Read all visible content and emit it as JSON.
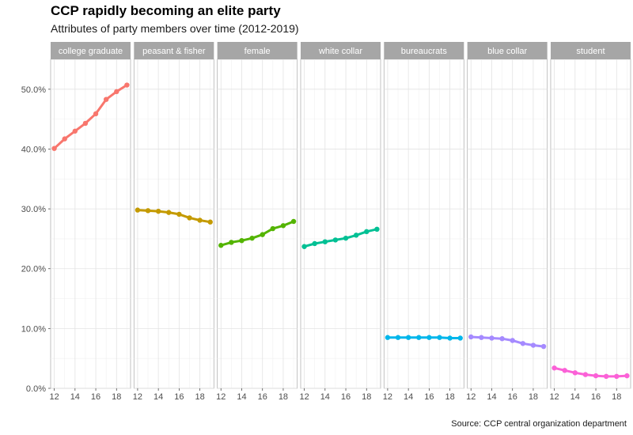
{
  "title": "CCP rapidly becoming an elite party",
  "subtitle": "Attributes of party members over time (2012-2019)",
  "caption": "Source: CCP central organization department",
  "chart_data": {
    "type": "line",
    "faceted": true,
    "x": [
      2012,
      2013,
      2014,
      2015,
      2016,
      2017,
      2018,
      2019
    ],
    "x_tick_values": [
      2012,
      2014,
      2016,
      2018
    ],
    "x_tick_labels": [
      "12",
      "14",
      "16",
      "18"
    ],
    "ylim": [
      0,
      0.55
    ],
    "y_ticks": [
      0,
      0.1,
      0.2,
      0.3,
      0.4,
      0.5
    ],
    "y_tick_labels": [
      "0.0%",
      "10.0%",
      "20.0%",
      "30.0%",
      "40.0%",
      "50.0%"
    ],
    "grid": true,
    "legend": "none",
    "series": [
      {
        "name": "college graduate",
        "color": "#F8766D",
        "values": [
          0.401,
          0.417,
          0.43,
          0.443,
          0.459,
          0.483,
          0.496,
          0.507
        ]
      },
      {
        "name": "peasant & fisher",
        "color": "#C49A00",
        "values": [
          0.298,
          0.297,
          0.296,
          0.294,
          0.291,
          0.285,
          0.281,
          0.278
        ]
      },
      {
        "name": "female",
        "color": "#53B400",
        "values": [
          0.239,
          0.244,
          0.247,
          0.251,
          0.257,
          0.267,
          0.272,
          0.279
        ]
      },
      {
        "name": "white collar",
        "color": "#00C094",
        "values": [
          0.237,
          0.242,
          0.245,
          0.248,
          0.251,
          0.256,
          0.262,
          0.266
        ]
      },
      {
        "name": "bureaucrats",
        "color": "#00B6EB",
        "values": [
          0.085,
          0.085,
          0.085,
          0.085,
          0.085,
          0.085,
          0.084,
          0.084
        ]
      },
      {
        "name": "blue collar",
        "color": "#A58AFF",
        "values": [
          0.086,
          0.085,
          0.084,
          0.083,
          0.08,
          0.075,
          0.072,
          0.07
        ]
      },
      {
        "name": "student",
        "color": "#FB61D7",
        "values": [
          0.034,
          0.03,
          0.026,
          0.023,
          0.021,
          0.02,
          0.02,
          0.021
        ]
      }
    ]
  }
}
